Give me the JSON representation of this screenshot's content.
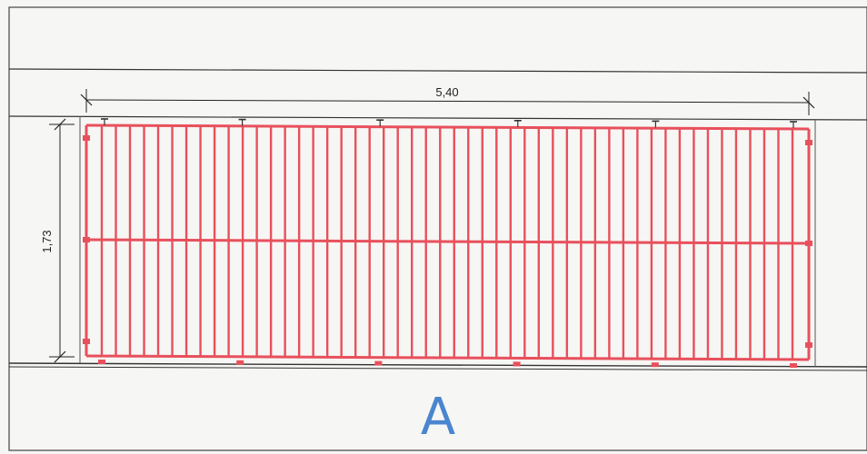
{
  "drawing": {
    "width_dimension": "5,40",
    "height_dimension": "1,73",
    "section_label": "A"
  },
  "grating": {
    "vertical_bar_count": 50,
    "top_anchor_count": 6,
    "bottom_anchor_count": 6
  },
  "colors": {
    "grating": "#e8505c",
    "line": "#333333",
    "label": "#4a86d0",
    "paper": "#f6f6f4"
  }
}
